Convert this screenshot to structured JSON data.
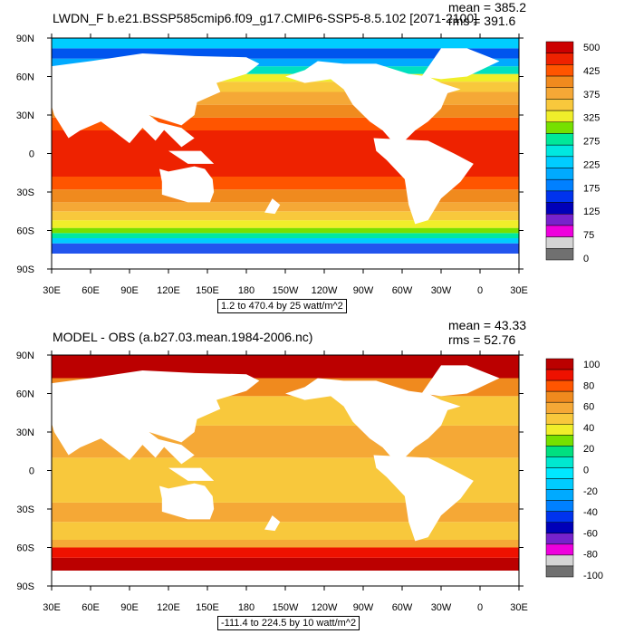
{
  "chart_data": [
    {
      "type": "heatmap",
      "title": "LWDN_F b.e21.BSSP585cmip6.f09_g17.CMIP6-SSP5-8.5.102 [2071-2100]",
      "stats": {
        "mean": "mean = 385.2",
        "rms": "rms = 391.6"
      },
      "caption": "1.2 to 470.4 by 25 watt/m^2",
      "xlabel": "",
      "ylabel": "",
      "x_ticks": [
        "30E",
        "60E",
        "90E",
        "120E",
        "150E",
        "180",
        "150W",
        "120W",
        "90W",
        "60W",
        "30W",
        "0",
        "30E"
      ],
      "y_ticks": [
        "90N",
        "60N",
        "30N",
        "0",
        "30S",
        "60S",
        "90S"
      ],
      "colorbar": {
        "labels": [
          "500",
          "425",
          "375",
          "325",
          "275",
          "225",
          "175",
          "125",
          "75",
          "0"
        ],
        "colors": [
          "#cc0000",
          "#ee2200",
          "#ff5500",
          "#f08a1e",
          "#f5a836",
          "#f8c83c",
          "#f0ee2a",
          "#76e000",
          "#00e89a",
          "#00e8e0",
          "#00ccff",
          "#00aaff",
          "#0080ff",
          "#0033ee",
          "#0000b8",
          "#7722cc",
          "#ee00dd",
          "#d4d4d4",
          "#707070"
        ]
      },
      "zonal_bands": [
        {
          "lat": [
            -90,
            -78
          ],
          "color": "#ffffff"
        },
        {
          "lat": [
            -78,
            -70
          ],
          "color": "#2255ee"
        },
        {
          "lat": [
            -70,
            -66
          ],
          "color": "#00ccff"
        },
        {
          "lat": [
            -66,
            -62
          ],
          "color": "#00e8a0"
        },
        {
          "lat": [
            -62,
            -58
          ],
          "color": "#76e000"
        },
        {
          "lat": [
            -58,
            -52
          ],
          "color": "#f0ee2a"
        },
        {
          "lat": [
            -52,
            -45
          ],
          "color": "#f8c83c"
        },
        {
          "lat": [
            -45,
            -38
          ],
          "color": "#f5a836"
        },
        {
          "lat": [
            -38,
            -28
          ],
          "color": "#f08a1e"
        },
        {
          "lat": [
            -28,
            -18
          ],
          "color": "#ff5500"
        },
        {
          "lat": [
            -18,
            18
          ],
          "color": "#ee2200"
        },
        {
          "lat": [
            18,
            28
          ],
          "color": "#ff5500"
        },
        {
          "lat": [
            28,
            38
          ],
          "color": "#f08a1e"
        },
        {
          "lat": [
            38,
            48
          ],
          "color": "#f5a836"
        },
        {
          "lat": [
            48,
            56
          ],
          "color": "#f8c83c"
        },
        {
          "lat": [
            56,
            62
          ],
          "color": "#f0ee2a"
        },
        {
          "lat": [
            62,
            68
          ],
          "color": "#00e0c0"
        },
        {
          "lat": [
            68,
            74
          ],
          "color": "#00aaff"
        },
        {
          "lat": [
            74,
            82
          ],
          "color": "#0055ee"
        },
        {
          "lat": [
            82,
            90
          ],
          "color": "#00ccff"
        }
      ]
    },
    {
      "type": "heatmap",
      "title": "MODEL - OBS (a.b27.03.mean.1984-2006.nc)",
      "stats": {
        "mean": "mean = 43.33",
        "rms": "rms = 52.76"
      },
      "caption": "-111.4 to 224.5 by 10 watt/m^2",
      "xlabel": "",
      "ylabel": "",
      "x_ticks": [
        "30E",
        "60E",
        "90E",
        "120E",
        "150E",
        "180",
        "150W",
        "120W",
        "90W",
        "60W",
        "30W",
        "0",
        "30E"
      ],
      "y_ticks": [
        "90N",
        "60N",
        "30N",
        "0",
        "30S",
        "60S",
        "90S"
      ],
      "colorbar": {
        "labels": [
          "100",
          "80",
          "60",
          "40",
          "20",
          "0",
          "-20",
          "-40",
          "-60",
          "-80",
          "-100"
        ],
        "colors": [
          "#bb0000",
          "#ee1100",
          "#ff5500",
          "#f08a1e",
          "#f5a836",
          "#f8c83c",
          "#f0ee2a",
          "#76e000",
          "#00e080",
          "#00e8d0",
          "#00e8ff",
          "#00ccff",
          "#00aaff",
          "#0080ff",
          "#0033ee",
          "#0000b8",
          "#7722cc",
          "#ee00dd",
          "#d4d4d4",
          "#707070"
        ]
      },
      "zonal_bands": [
        {
          "lat": [
            -90,
            -78
          ],
          "color": "#ffffff"
        },
        {
          "lat": [
            -78,
            -68
          ],
          "color": "#bb0000"
        },
        {
          "lat": [
            -68,
            -60
          ],
          "color": "#ee1100"
        },
        {
          "lat": [
            -60,
            -54
          ],
          "color": "#f5a836"
        },
        {
          "lat": [
            -54,
            -40
          ],
          "color": "#f8c83c"
        },
        {
          "lat": [
            -40,
            -25
          ],
          "color": "#f5a836"
        },
        {
          "lat": [
            -25,
            10
          ],
          "color": "#f8c83c"
        },
        {
          "lat": [
            10,
            35
          ],
          "color": "#f5a836"
        },
        {
          "lat": [
            35,
            58
          ],
          "color": "#f8c83c"
        },
        {
          "lat": [
            58,
            72
          ],
          "color": "#f08a1e"
        },
        {
          "lat": [
            72,
            90
          ],
          "color": "#bb0000"
        }
      ]
    }
  ]
}
